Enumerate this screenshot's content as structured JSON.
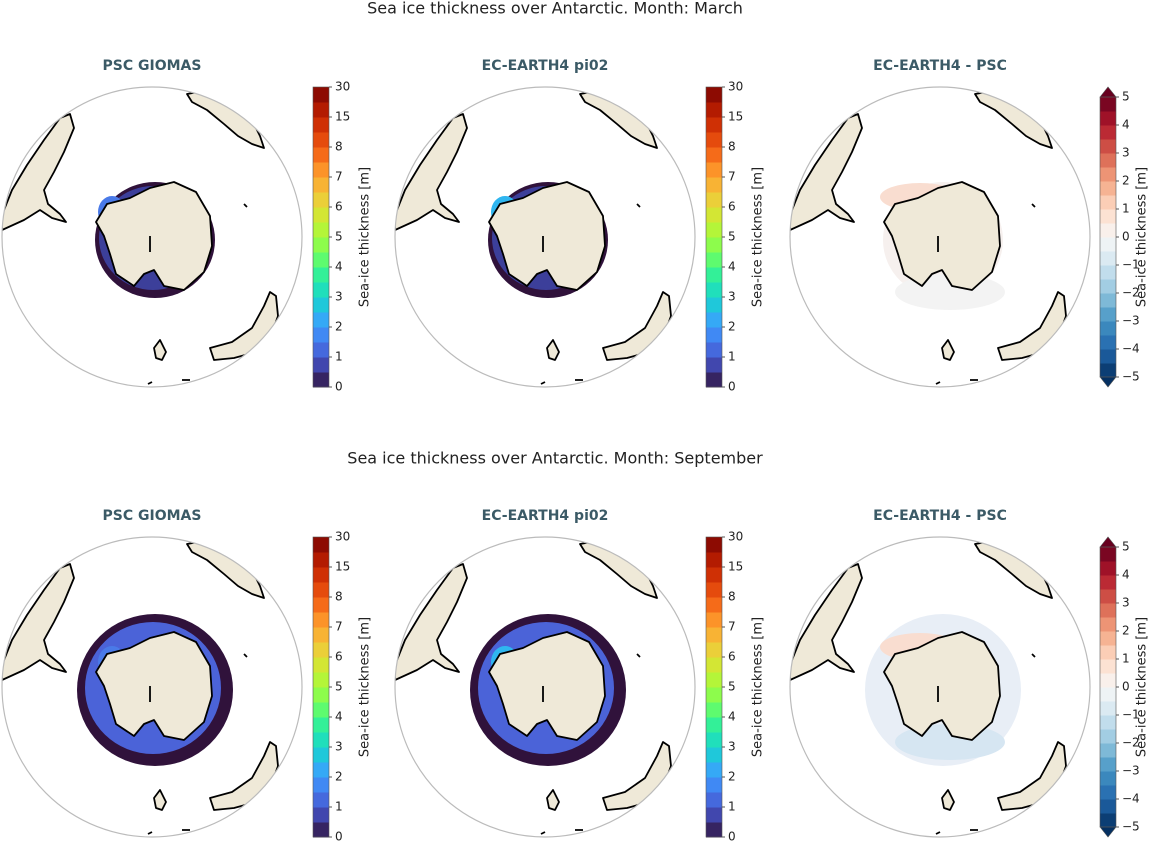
{
  "rows": [
    {
      "title": "Sea ice thickness over Antarctic. Month: March",
      "panels": [
        {
          "title": "PSC GIOMAS",
          "colorbar": {
            "label": "Sea-ice thickness [m]",
            "ticks": [
              0,
              1,
              2,
              3,
              4,
              5,
              6,
              7,
              8,
              15,
              30
            ]
          }
        },
        {
          "title": "EC-EARTH4 pi02",
          "colorbar": {
            "label": "Sea-ice thickness [m]",
            "ticks": [
              0,
              1,
              2,
              3,
              4,
              5,
              6,
              7,
              8,
              15,
              30
            ]
          }
        },
        {
          "title": "EC-EARTH4 -  PSC",
          "colorbar": {
            "label": "Sea-ice thickness [m]",
            "ticks": [
              {
                "value": -5,
                "label": "−5"
              },
              {
                "value": -4,
                "label": "−4"
              },
              {
                "value": -3,
                "label": "−3"
              },
              {
                "value": -2,
                "label": "−2"
              },
              {
                "value": -1,
                "label": "−1"
              },
              0,
              1,
              2,
              3,
              4,
              5
            ]
          }
        }
      ]
    },
    {
      "title": "Sea ice thickness over Antarctic. Month: September",
      "panels": [
        {
          "title": "PSC GIOMAS",
          "colorbar": {
            "label": "Sea-ice thickness [m]",
            "ticks": [
              0,
              1,
              2,
              3,
              4,
              5,
              6,
              7,
              8,
              15,
              30
            ]
          }
        },
        {
          "title": "EC-EARTH4 pi02",
          "colorbar": {
            "label": "Sea-ice thickness [m]",
            "ticks": [
              0,
              1,
              2,
              3,
              4,
              5,
              6,
              7,
              8,
              15,
              30
            ]
          }
        },
        {
          "title": "EC-EARTH4 -  PSC",
          "colorbar": {
            "label": "Sea-ice thickness [m]",
            "ticks": [
              {
                "value": -5,
                "label": "−5"
              },
              {
                "value": -4,
                "label": "−4"
              },
              {
                "value": -3,
                "label": "−3"
              },
              {
                "value": -2,
                "label": "−2"
              },
              {
                "value": -1,
                "label": "−1"
              },
              0,
              1,
              2,
              3,
              4,
              5
            ]
          }
        }
      ]
    }
  ]
}
